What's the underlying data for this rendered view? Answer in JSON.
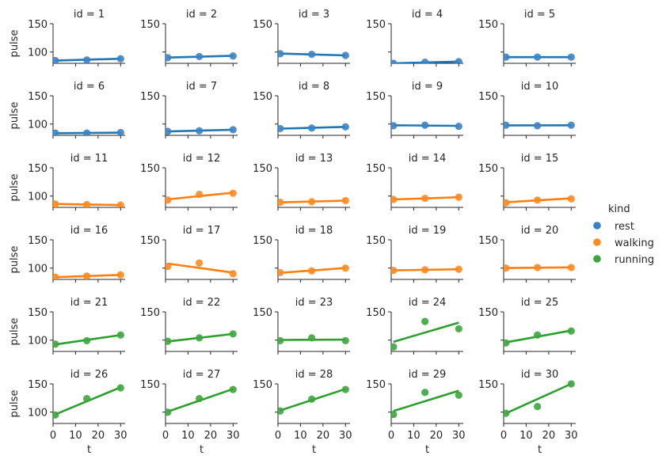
{
  "chart_data": {
    "type": "scatter",
    "layout": "facet-grid-6x5",
    "ylabel": "pulse",
    "xlabel": "t",
    "ylim": [
      80,
      150
    ],
    "xlim": [
      0,
      32
    ],
    "x_ticks": [
      0,
      10,
      20,
      30
    ],
    "x_tick_labels": [
      "0",
      "10",
      "20",
      "30"
    ],
    "y_tick_labels": [
      "100",
      "150"
    ],
    "facet_title_prefix": "id = ",
    "legend": {
      "title": "kind",
      "position": "right",
      "entries": [
        {
          "label": "rest",
          "color": "#3b82c4"
        },
        {
          "label": "walking",
          "color": "#ff8a1f"
        },
        {
          "label": "running",
          "color": "#3ca53c"
        }
      ]
    },
    "line_colors": {
      "rest": "#1f77b4",
      "walking": "#ff7f0e",
      "running": "#2ca02c"
    },
    "panels": [
      {
        "id": 1,
        "kind": "rest",
        "points": [
          [
            1,
            85
          ],
          [
            15,
            86
          ],
          [
            30,
            88
          ]
        ],
        "fit": [
          84.8,
          88.2
        ]
      },
      {
        "id": 2,
        "kind": "rest",
        "points": [
          [
            1,
            90
          ],
          [
            15,
            92
          ],
          [
            30,
            93
          ]
        ],
        "fit": [
          90.2,
          93.4
        ]
      },
      {
        "id": 3,
        "kind": "rest",
        "points": [
          [
            1,
            97
          ],
          [
            15,
            96
          ],
          [
            30,
            94
          ]
        ],
        "fit": [
          97.3,
          94.0
        ]
      },
      {
        "id": 4,
        "kind": "rest",
        "points": [
          [
            1,
            80
          ],
          [
            15,
            82
          ],
          [
            30,
            83
          ]
        ],
        "fit": [
          80.0,
          83.0
        ]
      },
      {
        "id": 5,
        "kind": "rest",
        "points": [
          [
            1,
            91
          ],
          [
            15,
            91
          ],
          [
            30,
            91
          ]
        ],
        "fit": [
          91.0,
          91.0
        ]
      },
      {
        "id": 6,
        "kind": "rest",
        "points": [
          [
            1,
            84
          ],
          [
            15,
            84
          ],
          [
            30,
            85
          ]
        ],
        "fit": [
          83.8,
          84.8
        ]
      },
      {
        "id": 7,
        "kind": "rest",
        "points": [
          [
            1,
            87
          ],
          [
            15,
            88
          ],
          [
            30,
            90
          ]
        ],
        "fit": [
          86.9,
          89.9
        ]
      },
      {
        "id": 8,
        "kind": "rest",
        "points": [
          [
            1,
            92
          ],
          [
            15,
            93
          ],
          [
            30,
            95
          ]
        ],
        "fit": [
          91.9,
          94.9
        ]
      },
      {
        "id": 9,
        "kind": "rest",
        "points": [
          [
            1,
            97
          ],
          [
            15,
            98
          ],
          [
            30,
            96
          ]
        ],
        "fit": [
          97.8,
          96.8
        ]
      },
      {
        "id": 10,
        "kind": "rest",
        "points": [
          [
            1,
            98
          ],
          [
            15,
            97
          ],
          [
            30,
            98
          ]
        ],
        "fit": [
          97.6,
          97.8
        ]
      },
      {
        "id": 11,
        "kind": "walking",
        "points": [
          [
            1,
            86
          ],
          [
            15,
            85
          ],
          [
            30,
            84
          ]
        ],
        "fit": [
          86.1,
          84.1
        ]
      },
      {
        "id": 12,
        "kind": "walking",
        "points": [
          [
            1,
            93
          ],
          [
            15,
            103
          ],
          [
            30,
            105
          ]
        ],
        "fit": [
          94.2,
          106.0
        ]
      },
      {
        "id": 13,
        "kind": "walking",
        "points": [
          [
            1,
            89
          ],
          [
            15,
            90
          ],
          [
            30,
            92
          ]
        ],
        "fit": [
          88.9,
          91.9
        ]
      },
      {
        "id": 14,
        "kind": "walking",
        "points": [
          [
            1,
            94
          ],
          [
            15,
            96
          ],
          [
            30,
            98
          ]
        ],
        "fit": [
          94.0,
          98.0
        ]
      },
      {
        "id": 15,
        "kind": "walking",
        "points": [
          [
            1,
            88
          ],
          [
            15,
            93
          ],
          [
            30,
            95
          ]
        ],
        "fit": [
          89.0,
          96.0
        ]
      },
      {
        "id": 16,
        "kind": "walking",
        "points": [
          [
            1,
            84
          ],
          [
            15,
            86
          ],
          [
            30,
            88
          ]
        ],
        "fit": [
          84.0,
          88.0
        ]
      },
      {
        "id": 17,
        "kind": "walking",
        "points": [
          [
            1,
            103
          ],
          [
            15,
            109
          ],
          [
            30,
            90
          ]
        ],
        "fit": [
          108.0,
          92.0
        ]
      },
      {
        "id": 18,
        "kind": "walking",
        "points": [
          [
            1,
            92
          ],
          [
            15,
            95
          ],
          [
            30,
            100
          ]
        ],
        "fit": [
          91.6,
          100.2
        ]
      },
      {
        "id": 19,
        "kind": "walking",
        "points": [
          [
            1,
            96
          ],
          [
            15,
            97
          ],
          [
            30,
            98
          ]
        ],
        "fit": [
          96.0,
          98.0
        ]
      },
      {
        "id": 20,
        "kind": "walking",
        "points": [
          [
            1,
            100
          ],
          [
            15,
            101
          ],
          [
            30,
            101
          ]
        ],
        "fit": [
          100.2,
          101.2
        ]
      },
      {
        "id": 21,
        "kind": "running",
        "points": [
          [
            1,
            93
          ],
          [
            15,
            99
          ],
          [
            30,
            109
          ]
        ],
        "fit": [
          92.3,
          108.9
        ]
      },
      {
        "id": 22,
        "kind": "running",
        "points": [
          [
            1,
            98
          ],
          [
            15,
            104
          ],
          [
            30,
            111
          ]
        ],
        "fit": [
          97.6,
          111.0
        ]
      },
      {
        "id": 23,
        "kind": "running",
        "points": [
          [
            1,
            99
          ],
          [
            15,
            104
          ],
          [
            30,
            99
          ]
        ],
        "fit": [
          100.3,
          100.9
        ]
      },
      {
        "id": 24,
        "kind": "running",
        "points": [
          [
            1,
            88
          ],
          [
            15,
            133
          ],
          [
            30,
            120
          ]
        ],
        "fit": [
          97.0,
          131.0
        ]
      },
      {
        "id": 25,
        "kind": "running",
        "points": [
          [
            1,
            95
          ],
          [
            15,
            109
          ],
          [
            30,
            116
          ]
        ],
        "fit": [
          96.0,
          117.0
        ]
      },
      {
        "id": 26,
        "kind": "running",
        "points": [
          [
            1,
            95
          ],
          [
            15,
            124
          ],
          [
            30,
            143
          ]
        ],
        "fit": [
          96.0,
          144.0
        ]
      },
      {
        "id": 27,
        "kind": "running",
        "points": [
          [
            1,
            100
          ],
          [
            15,
            124
          ],
          [
            30,
            140
          ]
        ],
        "fit": [
          101.0,
          141.0
        ]
      },
      {
        "id": 28,
        "kind": "running",
        "points": [
          [
            1,
            102
          ],
          [
            15,
            123
          ],
          [
            30,
            140
          ]
        ],
        "fit": [
          103.0,
          141.0
        ]
      },
      {
        "id": 29,
        "kind": "running",
        "points": [
          [
            1,
            96
          ],
          [
            15,
            135
          ],
          [
            30,
            130
          ]
        ],
        "fit": [
          102.0,
          138.0
        ]
      },
      {
        "id": 30,
        "kind": "running",
        "points": [
          [
            1,
            98
          ],
          [
            15,
            110
          ],
          [
            30,
            150
          ]
        ],
        "fit": [
          98.0,
          150.0
        ]
      }
    ]
  }
}
